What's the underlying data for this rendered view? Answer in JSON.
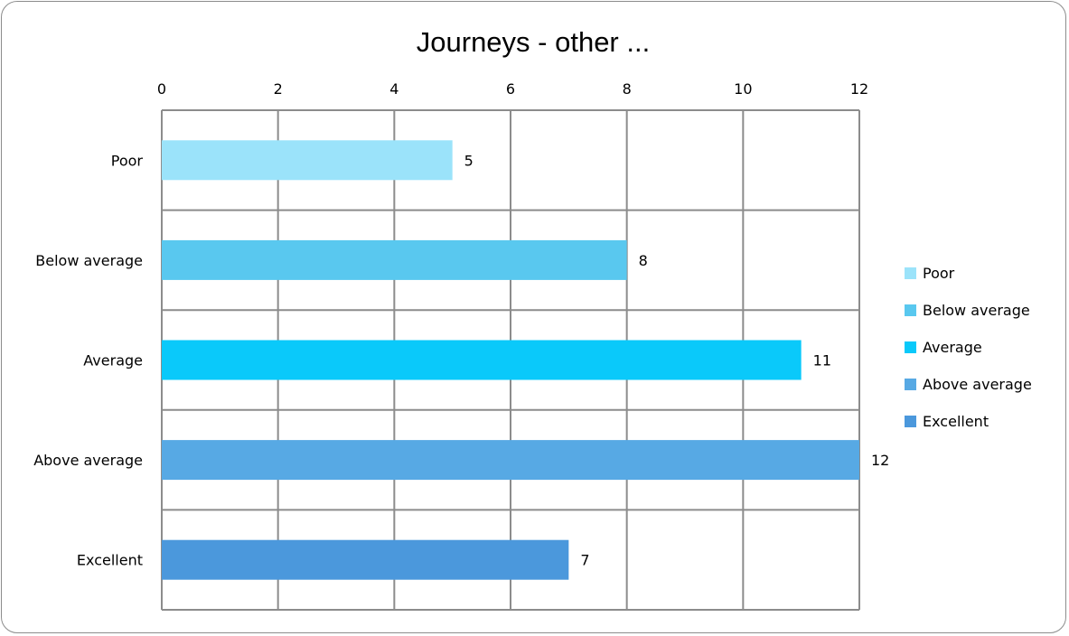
{
  "chart_data": {
    "type": "bar",
    "orientation": "horizontal",
    "title": "Journeys - other ...",
    "categories": [
      "Poor",
      "Below average",
      "Average",
      "Above average",
      "Excellent"
    ],
    "values": [
      5,
      8,
      11,
      12,
      7
    ],
    "colors": [
      "#9be3fa",
      "#59c8ef",
      "#0ac9fa",
      "#57a9e4",
      "#4b98dc"
    ],
    "xlim": [
      0,
      12
    ],
    "xticks": [
      "0",
      "2",
      "4",
      "6",
      "8",
      "10",
      "12"
    ],
    "x_axis_position": "top",
    "grid": true,
    "data_labels": [
      "5",
      "8",
      "11",
      "12",
      "7"
    ],
    "legend": {
      "placement": "right",
      "entries": [
        "Poor",
        "Below average",
        "Average",
        "Above average",
        "Excellent"
      ]
    }
  }
}
